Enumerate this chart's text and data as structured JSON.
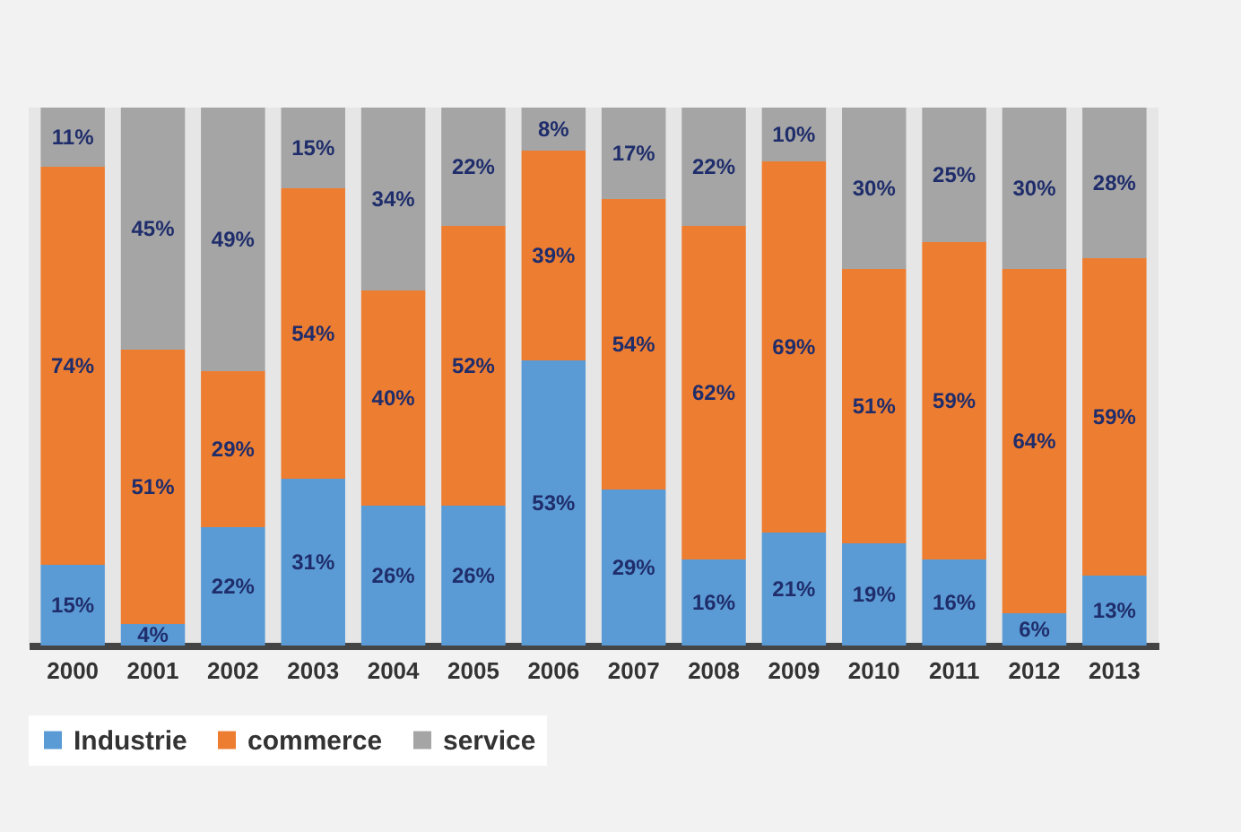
{
  "chart_data": {
    "type": "bar",
    "stacked": true,
    "legend": "bottom",
    "categories": [
      "2000",
      "2001",
      "2002",
      "2003",
      "2004",
      "2005",
      "2006",
      "2007",
      "2008",
      "2009",
      "2010",
      "2011",
      "2012",
      "2013"
    ],
    "series": [
      {
        "name": "Industrie",
        "color": "#5b9bd5",
        "values": [
          15,
          4,
          22,
          31,
          26,
          26,
          53,
          29,
          16,
          21,
          19,
          16,
          6,
          13
        ],
        "value_labels": [
          "15%",
          "4%",
          "22%",
          "31%",
          "26%",
          "26%",
          "53%",
          "29%",
          "16%",
          "21%",
          "19%",
          "16%",
          "6%",
          "13%"
        ]
      },
      {
        "name": "commerce",
        "color": "#ed7d31",
        "values": [
          74,
          51,
          29,
          54,
          40,
          52,
          39,
          54,
          62,
          69,
          51,
          59,
          64,
          59
        ],
        "value_labels": [
          "74%",
          "51%",
          "29%",
          "54%",
          "40%",
          "52%",
          "39%",
          "54%",
          "62%",
          "69%",
          "51%",
          "59%",
          "64%",
          "59%"
        ]
      },
      {
        "name": "service",
        "color": "#a5a5a5",
        "values": [
          11,
          45,
          49,
          15,
          34,
          22,
          8,
          17,
          22,
          10,
          30,
          25,
          30,
          28
        ],
        "value_labels": [
          "11%",
          "45%",
          "49%",
          "15%",
          "34%",
          "22%",
          "8%",
          "17%",
          "22%",
          "10%",
          "30%",
          "25%",
          "30%",
          "28%"
        ]
      }
    ]
  }
}
